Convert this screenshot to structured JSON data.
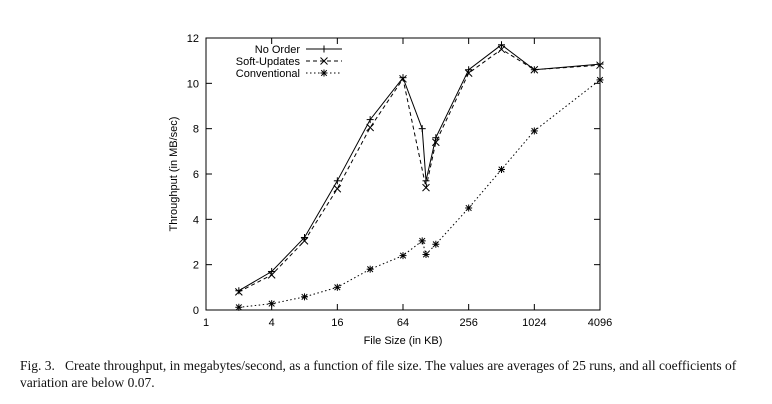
{
  "caption": {
    "label": "Fig. 3.",
    "text": "Create throughput, in megabytes/second, as a function of file size. The values are averages of 25 runs, and all coefficients of variation are below 0.07."
  },
  "chart_data": {
    "type": "line",
    "title": "",
    "xlabel": "File Size (in KB)",
    "ylabel": "Throughput (in MB/sec)",
    "xscale": "log2",
    "xlim": [
      1,
      4096
    ],
    "ylim": [
      0,
      12
    ],
    "xticks": [
      1,
      4,
      16,
      64,
      256,
      1024,
      4096
    ],
    "yticks": [
      0,
      2,
      4,
      6,
      8,
      10,
      12
    ],
    "grid": false,
    "legend_position": "top-left",
    "series": [
      {
        "name": "No Order",
        "line": "solid",
        "marker": "+",
        "points": [
          [
            2,
            0.85
          ],
          [
            4,
            1.7
          ],
          [
            8,
            3.2
          ],
          [
            16,
            5.7
          ],
          [
            32,
            8.4
          ],
          [
            64,
            10.25
          ],
          [
            96,
            8.0
          ],
          [
            104,
            5.7
          ],
          [
            128,
            7.6
          ],
          [
            256,
            10.6
          ],
          [
            512,
            11.7
          ],
          [
            1024,
            10.6
          ],
          [
            4096,
            10.85
          ]
        ]
      },
      {
        "name": "Soft-Updates",
        "line": "dashed",
        "marker": "x",
        "points": [
          [
            2,
            0.8
          ],
          [
            4,
            1.55
          ],
          [
            8,
            3.05
          ],
          [
            16,
            5.35
          ],
          [
            32,
            8.05
          ],
          [
            64,
            10.2
          ],
          [
            104,
            5.4
          ],
          [
            128,
            7.4
          ],
          [
            256,
            10.45
          ],
          [
            512,
            11.5
          ],
          [
            1024,
            10.6
          ],
          [
            4096,
            10.8
          ]
        ]
      },
      {
        "name": "Conventional",
        "line": "dotted",
        "marker": "*",
        "points": [
          [
            2,
            0.12
          ],
          [
            4,
            0.28
          ],
          [
            8,
            0.58
          ],
          [
            16,
            1.0
          ],
          [
            32,
            1.8
          ],
          [
            64,
            2.4
          ],
          [
            96,
            3.05
          ],
          [
            104,
            2.45
          ],
          [
            128,
            2.9
          ],
          [
            256,
            4.5
          ],
          [
            512,
            6.2
          ],
          [
            1024,
            7.9
          ],
          [
            4096,
            10.15
          ]
        ]
      }
    ]
  }
}
